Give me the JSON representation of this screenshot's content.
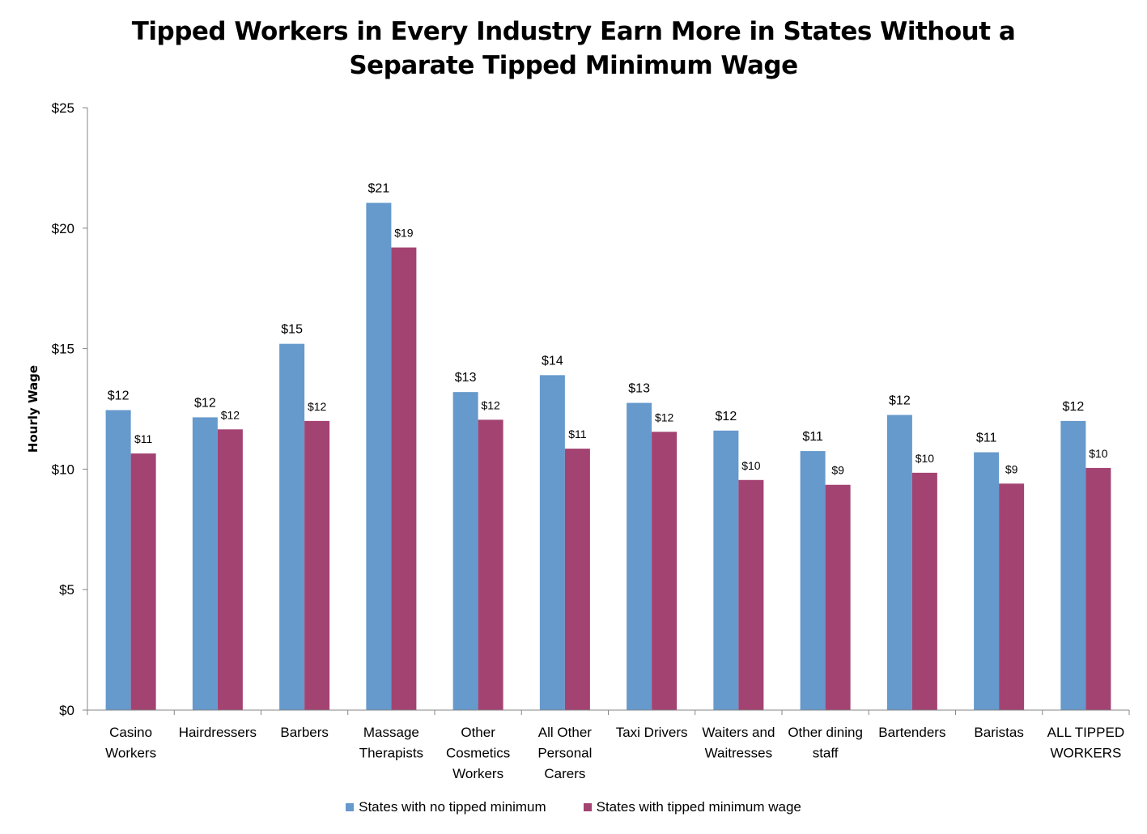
{
  "chart_data": {
    "type": "bar",
    "title": "Tipped Workers in Every Industry Earn More in States Without a Separate Tipped Minimum Wage",
    "title_lines": [
      "Tipped Workers in Every Industry Earn More in States Without a",
      "Separate Tipped Minimum Wage"
    ],
    "ylabel": "Hourly Wage",
    "xlabel": "",
    "ylim": [
      0,
      25
    ],
    "yticks": [
      0,
      5,
      10,
      15,
      20,
      25
    ],
    "ytick_labels": [
      "$0",
      "$5",
      "$10",
      "$15",
      "$20",
      "$25"
    ],
    "grid": false,
    "legend_position": "bottom",
    "categories": [
      [
        "Casino",
        "Workers"
      ],
      [
        "Hairdressers"
      ],
      [
        "Barbers"
      ],
      [
        "Massage",
        "Therapists"
      ],
      [
        "Other",
        "Cosmetics",
        "Workers"
      ],
      [
        "All Other",
        "Personal",
        "Carers"
      ],
      [
        "Taxi Drivers"
      ],
      [
        "Waiters and",
        "Waitresses"
      ],
      [
        "Other dining",
        "staff"
      ],
      [
        "Bartenders"
      ],
      [
        "Baristas"
      ],
      [
        "ALL TIPPED",
        "WORKERS"
      ]
    ],
    "series": [
      {
        "name": "States with no tipped minimum",
        "color": "#6699CC",
        "values": [
          12.45,
          12.15,
          15.2,
          21.05,
          13.2,
          13.9,
          12.75,
          11.6,
          10.75,
          12.25,
          10.7,
          12.0
        ],
        "labels": [
          "$12",
          "$12",
          "$15",
          "$21",
          "$13",
          "$14",
          "$13",
          "$12",
          "$11",
          "$12",
          "$11",
          "$12"
        ]
      },
      {
        "name": "States with tipped minimum wage",
        "color": "#A34372",
        "values": [
          10.65,
          11.65,
          12.0,
          19.2,
          12.05,
          10.85,
          11.55,
          9.55,
          9.35,
          9.85,
          9.4,
          10.05
        ],
        "labels": [
          "$11",
          "$12",
          "$12",
          "$19",
          "$12",
          "$11",
          "$12",
          "$10",
          "$9",
          "$10",
          "$9",
          "$10"
        ]
      }
    ]
  }
}
